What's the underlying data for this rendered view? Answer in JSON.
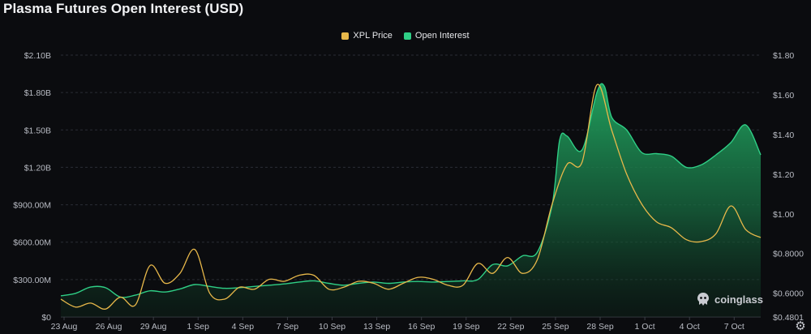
{
  "title": "Plasma Futures Open Interest (USD)",
  "legend": [
    {
      "label": "XPL Price",
      "color": "#e8b84a"
    },
    {
      "label": "Open Interest",
      "color": "#2fcf86"
    }
  ],
  "watermark": "coinglass",
  "icons": {
    "logo": "coinglass-logo-icon",
    "settings": "gear-icon"
  },
  "chart_data": {
    "type": "area",
    "title": "Plasma Futures Open Interest (USD)",
    "x_ticks": [
      "23 Aug",
      "26 Aug",
      "29 Aug",
      "1 Sep",
      "4 Sep",
      "7 Sep",
      "10 Sep",
      "13 Sep",
      "16 Sep",
      "19 Sep",
      "22 Sep",
      "25 Sep",
      "28 Sep",
      "1 Oct",
      "4 Oct",
      "7 Oct"
    ],
    "x_range": [
      "2025-08-23",
      "2025-10-09"
    ],
    "y_left": {
      "label": "Open Interest (USD)",
      "min": 0,
      "max": 2100000000,
      "ticks": [
        "$0",
        "$300.00M",
        "$600.00M",
        "$900.00M",
        "$1.20B",
        "$1.50B",
        "$1.80B",
        "$2.10B"
      ],
      "tick_values": [
        0,
        300000000,
        600000000,
        900000000,
        1200000000,
        1500000000,
        1800000000,
        2100000000
      ]
    },
    "y_right": {
      "label": "XPL Price",
      "min": 0.4801,
      "max": 1.8,
      "ticks": [
        "$0.4801",
        "$0.6000",
        "$0.8000",
        "$1.00",
        "$1.20",
        "$1.40",
        "$1.60",
        "$1.80"
      ],
      "tick_values": [
        0.4801,
        0.6,
        0.8,
        1.0,
        1.2,
        1.4,
        1.6,
        1.8
      ]
    },
    "grid": true,
    "legend_position": "top-center",
    "series": [
      {
        "name": "Open Interest",
        "axis": "left",
        "color": "#2fcf86",
        "x": [
          "2025-08-23",
          "2025-08-24",
          "2025-08-25",
          "2025-08-26",
          "2025-08-27",
          "2025-08-28",
          "2025-08-29",
          "2025-08-30",
          "2025-08-31",
          "2025-09-01",
          "2025-09-02",
          "2025-09-03",
          "2025-09-04",
          "2025-09-05",
          "2025-09-06",
          "2025-09-07",
          "2025-09-08",
          "2025-09-09",
          "2025-09-10",
          "2025-09-11",
          "2025-09-12",
          "2025-09-13",
          "2025-09-14",
          "2025-09-15",
          "2025-09-16",
          "2025-09-17",
          "2025-09-18",
          "2025-09-19",
          "2025-09-20",
          "2025-09-21",
          "2025-09-22",
          "2025-09-23",
          "2025-09-24",
          "2025-09-25",
          "2025-09-25",
          "2025-09-26",
          "2025-09-27",
          "2025-09-28",
          "2025-09-28",
          "2025-09-29",
          "2025-09-30",
          "2025-10-01",
          "2025-10-02",
          "2025-10-03",
          "2025-10-04",
          "2025-10-05",
          "2025-10-06",
          "2025-10-07",
          "2025-10-08",
          "2025-10-09"
        ],
        "values": [
          170000000,
          190000000,
          240000000,
          235000000,
          160000000,
          175000000,
          210000000,
          200000000,
          225000000,
          260000000,
          245000000,
          230000000,
          235000000,
          245000000,
          255000000,
          265000000,
          280000000,
          290000000,
          270000000,
          255000000,
          270000000,
          280000000,
          270000000,
          280000000,
          285000000,
          280000000,
          285000000,
          290000000,
          300000000,
          420000000,
          410000000,
          490000000,
          520000000,
          900000000,
          1420000000,
          1450000000,
          1340000000,
          1800000000,
          1850000000,
          1600000000,
          1500000000,
          1320000000,
          1310000000,
          1290000000,
          1200000000,
          1220000000,
          1300000000,
          1400000000,
          1540000000,
          1300000000
        ]
      },
      {
        "name": "XPL Price",
        "axis": "right",
        "color": "#e8b84a",
        "x": [
          "2025-08-23",
          "2025-08-24",
          "2025-08-25",
          "2025-08-26",
          "2025-08-27",
          "2025-08-28",
          "2025-08-29",
          "2025-08-30",
          "2025-08-31",
          "2025-09-01",
          "2025-09-02",
          "2025-09-03",
          "2025-09-04",
          "2025-09-05",
          "2025-09-06",
          "2025-09-07",
          "2025-09-08",
          "2025-09-09",
          "2025-09-10",
          "2025-09-11",
          "2025-09-12",
          "2025-09-13",
          "2025-09-14",
          "2025-09-15",
          "2025-09-16",
          "2025-09-17",
          "2025-09-18",
          "2025-09-19",
          "2025-09-20",
          "2025-09-21",
          "2025-09-22",
          "2025-09-23",
          "2025-09-24",
          "2025-09-25",
          "2025-09-26",
          "2025-09-27",
          "2025-09-28",
          "2025-09-29",
          "2025-09-30",
          "2025-10-01",
          "2025-10-02",
          "2025-10-03",
          "2025-10-04",
          "2025-10-05",
          "2025-10-06",
          "2025-10-07",
          "2025-10-08",
          "2025-10-09"
        ],
        "values": [
          0.57,
          0.53,
          0.55,
          0.52,
          0.58,
          0.54,
          0.74,
          0.65,
          0.7,
          0.82,
          0.6,
          0.57,
          0.63,
          0.62,
          0.67,
          0.66,
          0.69,
          0.69,
          0.62,
          0.63,
          0.66,
          0.65,
          0.62,
          0.65,
          0.68,
          0.67,
          0.64,
          0.64,
          0.75,
          0.7,
          0.78,
          0.7,
          0.77,
          1.05,
          1.25,
          1.26,
          1.65,
          1.42,
          1.2,
          1.05,
          0.96,
          0.93,
          0.87,
          0.86,
          0.9,
          1.04,
          0.92,
          0.88
        ]
      }
    ]
  }
}
